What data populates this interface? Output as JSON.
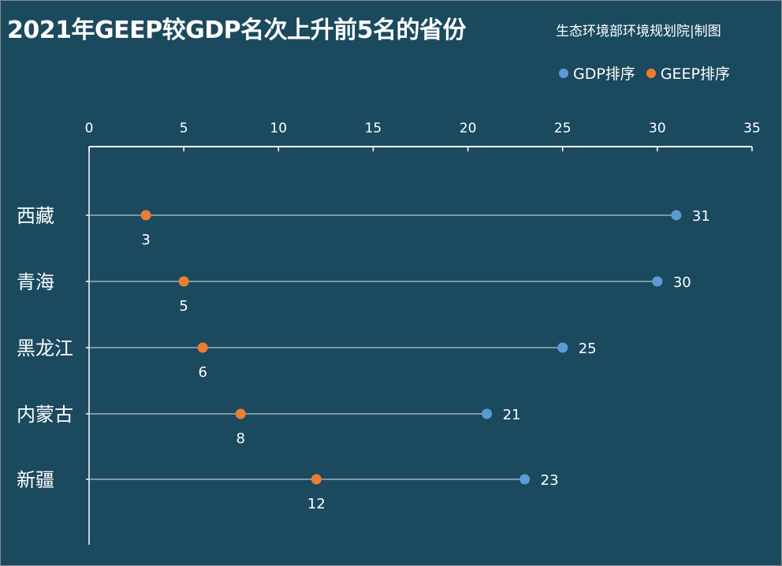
{
  "header": {
    "title": "2021年GEEP较GDP名次上升前5名的省份",
    "credit": "生态环境部环境规划院|制图"
  },
  "colors": {
    "background": "#1b4a5f",
    "gdp": "#5b9bd5",
    "geep": "#ed7d31",
    "axis": "#ffffff",
    "connector": "#b8c3c9"
  },
  "chart_data": {
    "type": "scatter",
    "title": "2021年GEEP较GDP名次上升前5名的省份",
    "categories": [
      "西藏",
      "青海",
      "黑龙江",
      "内蒙古",
      "新疆"
    ],
    "series": [
      {
        "name": "GDP排序",
        "color": "#5b9bd5",
        "values": [
          31,
          30,
          25,
          21,
          23
        ]
      },
      {
        "name": "GEEP排序",
        "color": "#ed7d31",
        "values": [
          3,
          5,
          6,
          8,
          12
        ]
      }
    ],
    "xaxis": {
      "position": "top",
      "range": [
        0,
        35
      ],
      "ticks": [
        0,
        5,
        10,
        15,
        20,
        25,
        30,
        35
      ]
    },
    "legend": {
      "position": "top-right"
    },
    "grid": false
  }
}
